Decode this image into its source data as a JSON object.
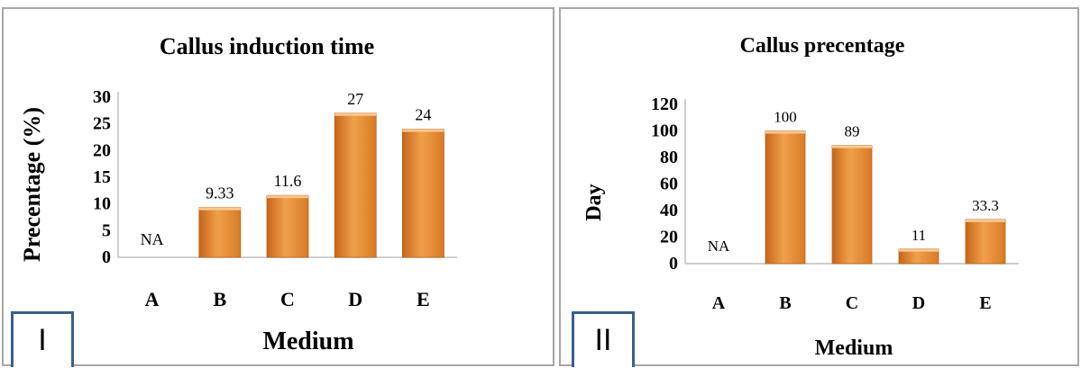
{
  "chart_data": [
    {
      "type": "bar",
      "panel_label": "I",
      "title": "Callus induction time",
      "xlabel": "Medium",
      "ylabel": "Precentage (%)",
      "categories": [
        "A",
        "B",
        "C",
        "D",
        "E"
      ],
      "values": [
        null,
        9.33,
        11.6,
        27,
        24
      ],
      "data_labels": [
        "NA",
        "9.33",
        "11.6",
        "27",
        "24"
      ],
      "ylim": [
        0,
        30
      ],
      "yticks": [
        "0",
        "5",
        "10",
        "15",
        "20",
        "25",
        "30"
      ],
      "grid": false,
      "bar_color": "#f0a04b"
    },
    {
      "type": "bar",
      "panel_label": "II",
      "title": "Callus precentage",
      "xlabel": "Medium",
      "ylabel": "Day",
      "categories": [
        "A",
        "B",
        "C",
        "D",
        "E"
      ],
      "values": [
        null,
        100,
        89,
        11,
        33.3
      ],
      "data_labels": [
        "NA",
        "100",
        "89",
        "11",
        "33.3"
      ],
      "ylim": [
        0,
        120
      ],
      "yticks": [
        "0",
        "20",
        "40",
        "60",
        "80",
        "100",
        "120"
      ],
      "grid": false,
      "bar_color": "#f0a04b"
    }
  ]
}
